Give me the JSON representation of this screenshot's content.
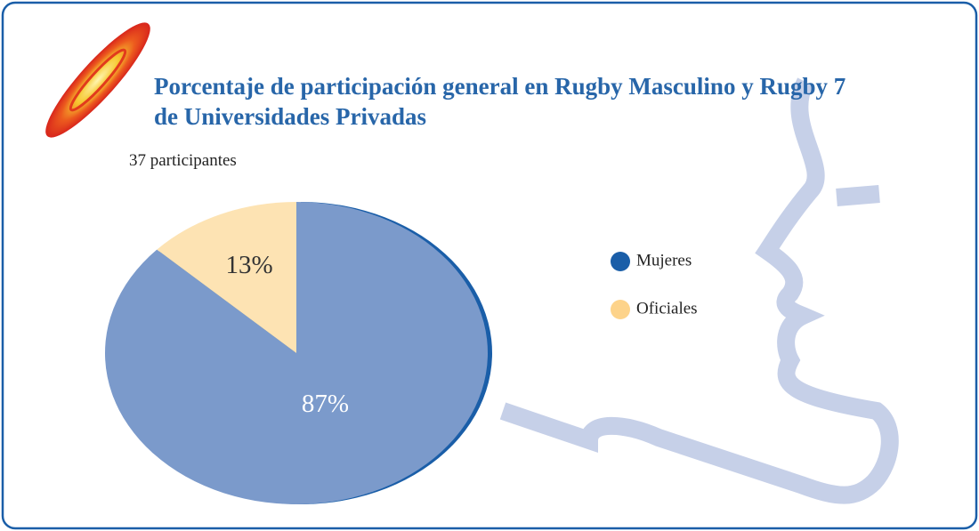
{
  "chart_data": {
    "type": "pie",
    "title": "Porcentaje de participación general en Rugby Masculino y Rugby 7 de Universidades Privadas",
    "subtitle": "37 participantes",
    "categories": [
      "Mujeres",
      "Oficiales"
    ],
    "values": [
      87,
      13
    ],
    "value_labels": [
      "87%",
      "13%"
    ],
    "colors": [
      "#7b9acb",
      "#fde3b3"
    ],
    "legend_colors": [
      "#1a5ea8",
      "#fdd38a"
    ],
    "edge_color": "#1a5ea8"
  }
}
